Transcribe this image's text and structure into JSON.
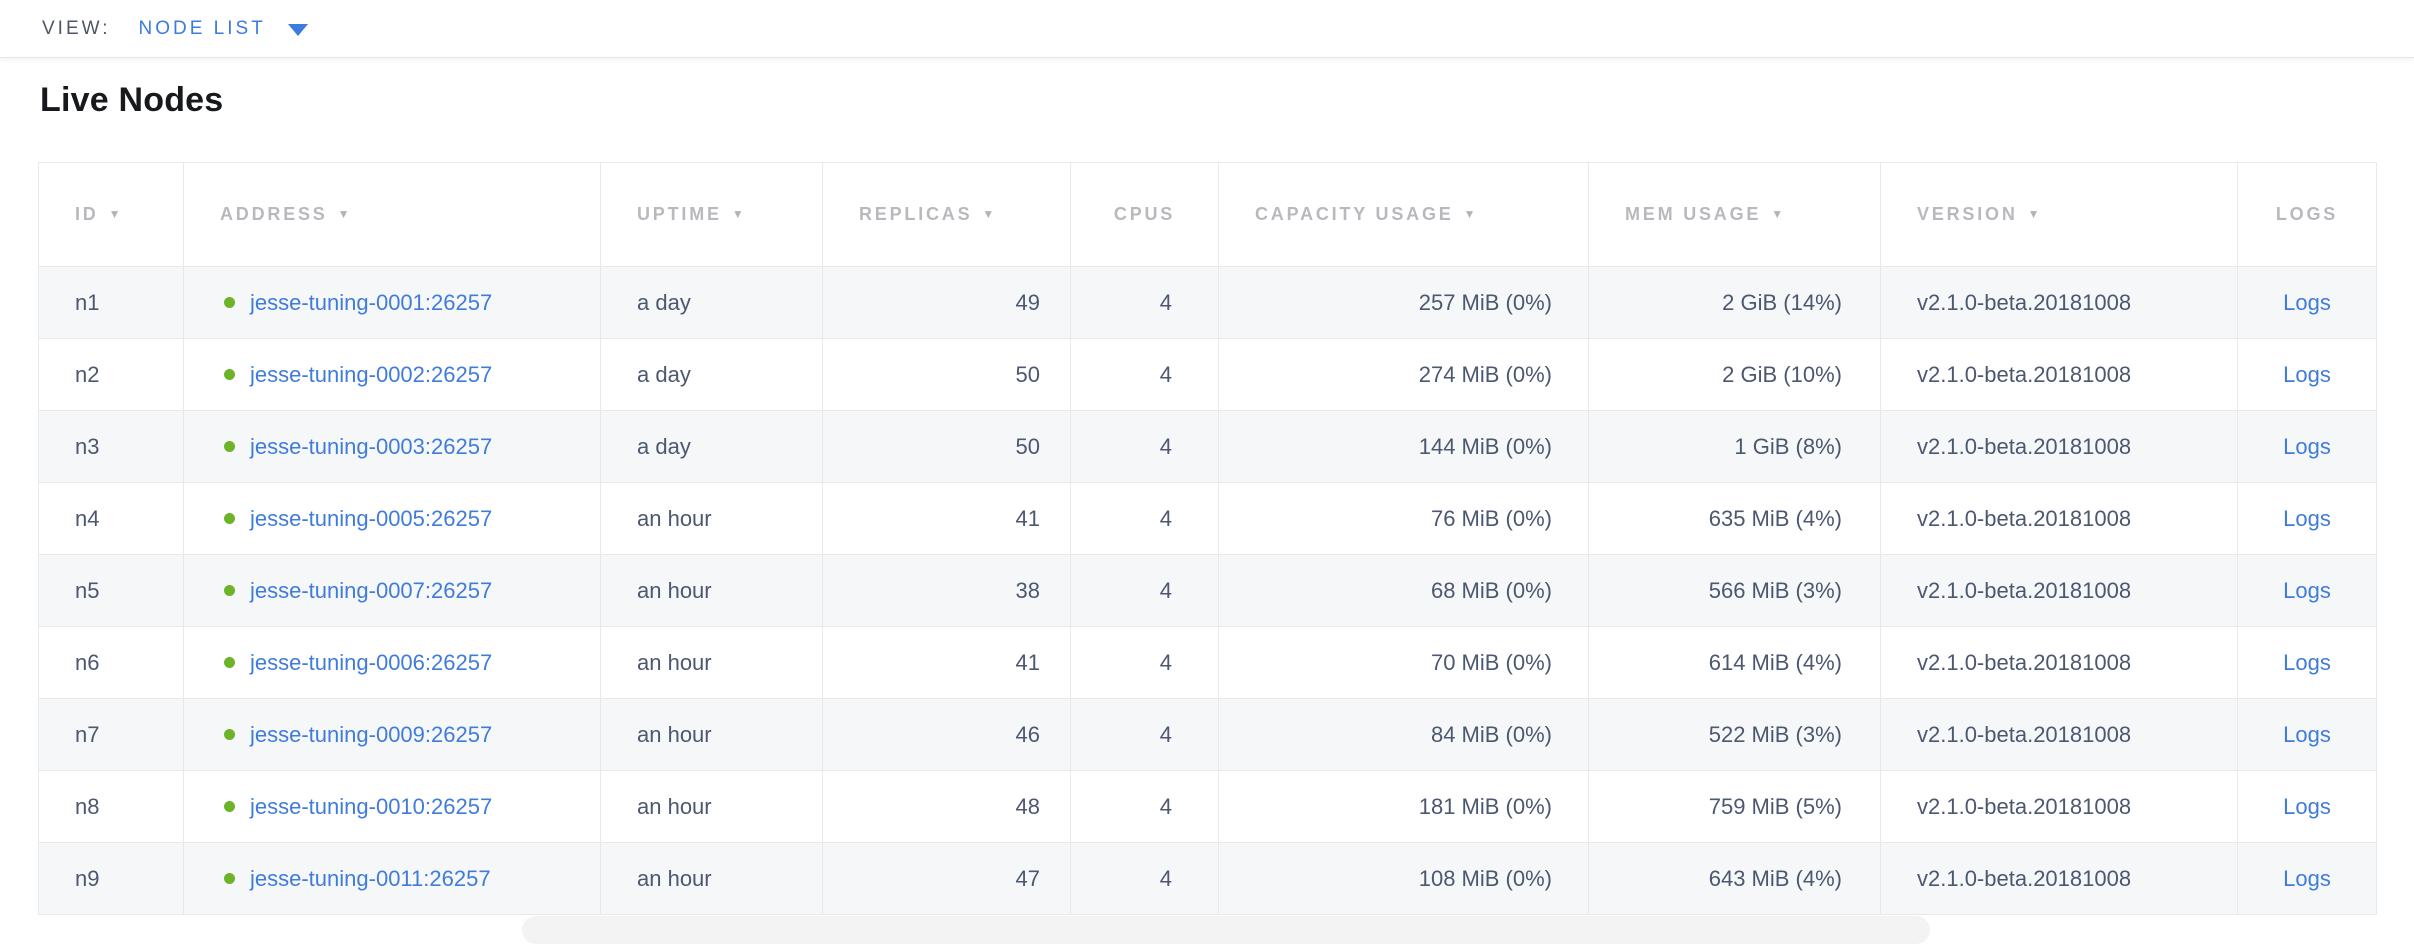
{
  "toolbar": {
    "view_label": "VIEW:",
    "view_value": "NODE LIST",
    "dropdown_icon": "chevron-down-filled-triangle"
  },
  "page": {
    "title": "Live Nodes"
  },
  "colors": {
    "accent_blue": "#3d7be0",
    "link_blue": "#3f7cdb",
    "live_status_green": "#6db327",
    "header_gray": "#b7b9bd",
    "text_slate": "#4c5870",
    "row_alt_bg": "#f6f7f8",
    "border": "#e8e9eb"
  },
  "table": {
    "columns": [
      {
        "key": "id",
        "label": "ID",
        "sortable": true
      },
      {
        "key": "address",
        "label": "ADDRESS",
        "sortable": true
      },
      {
        "key": "uptime",
        "label": "UPTIME",
        "sortable": true
      },
      {
        "key": "replicas",
        "label": "REPLICAS",
        "sortable": true
      },
      {
        "key": "cpus",
        "label": "CPUS",
        "sortable": false
      },
      {
        "key": "capacity",
        "label": "CAPACITY USAGE",
        "sortable": true
      },
      {
        "key": "mem",
        "label": "MEM USAGE",
        "sortable": true
      },
      {
        "key": "version",
        "label": "VERSION",
        "sortable": true
      },
      {
        "key": "logs",
        "label": "LOGS",
        "sortable": false
      }
    ],
    "sort_icon": "▼",
    "rows": [
      {
        "id": "n1",
        "address": "jesse-tuning-0001:26257",
        "status": "live",
        "uptime": "a day",
        "replicas": "49",
        "cpus": "4",
        "capacity": "257 MiB (0%)",
        "mem": "2 GiB (14%)",
        "version": "v2.1.0-beta.20181008",
        "logs": "Logs"
      },
      {
        "id": "n2",
        "address": "jesse-tuning-0002:26257",
        "status": "live",
        "uptime": "a day",
        "replicas": "50",
        "cpus": "4",
        "capacity": "274 MiB (0%)",
        "mem": "2 GiB (10%)",
        "version": "v2.1.0-beta.20181008",
        "logs": "Logs"
      },
      {
        "id": "n3",
        "address": "jesse-tuning-0003:26257",
        "status": "live",
        "uptime": "a day",
        "replicas": "50",
        "cpus": "4",
        "capacity": "144 MiB (0%)",
        "mem": "1 GiB (8%)",
        "version": "v2.1.0-beta.20181008",
        "logs": "Logs"
      },
      {
        "id": "n4",
        "address": "jesse-tuning-0005:26257",
        "status": "live",
        "uptime": "an hour",
        "replicas": "41",
        "cpus": "4",
        "capacity": "76 MiB (0%)",
        "mem": "635 MiB (4%)",
        "version": "v2.1.0-beta.20181008",
        "logs": "Logs"
      },
      {
        "id": "n5",
        "address": "jesse-tuning-0007:26257",
        "status": "live",
        "uptime": "an hour",
        "replicas": "38",
        "cpus": "4",
        "capacity": "68 MiB (0%)",
        "mem": "566 MiB (3%)",
        "version": "v2.1.0-beta.20181008",
        "logs": "Logs"
      },
      {
        "id": "n6",
        "address": "jesse-tuning-0006:26257",
        "status": "live",
        "uptime": "an hour",
        "replicas": "41",
        "cpus": "4",
        "capacity": "70 MiB (0%)",
        "mem": "614 MiB (4%)",
        "version": "v2.1.0-beta.20181008",
        "logs": "Logs"
      },
      {
        "id": "n7",
        "address": "jesse-tuning-0009:26257",
        "status": "live",
        "uptime": "an hour",
        "replicas": "46",
        "cpus": "4",
        "capacity": "84 MiB (0%)",
        "mem": "522 MiB (3%)",
        "version": "v2.1.0-beta.20181008",
        "logs": "Logs"
      },
      {
        "id": "n8",
        "address": "jesse-tuning-0010:26257",
        "status": "live",
        "uptime": "an hour",
        "replicas": "48",
        "cpus": "4",
        "capacity": "181 MiB (0%)",
        "mem": "759 MiB (5%)",
        "version": "v2.1.0-beta.20181008",
        "logs": "Logs"
      },
      {
        "id": "n9",
        "address": "jesse-tuning-0011:26257",
        "status": "live",
        "uptime": "an hour",
        "replicas": "47",
        "cpus": "4",
        "capacity": "108 MiB (0%)",
        "mem": "643 MiB (4%)",
        "version": "v2.1.0-beta.20181008",
        "logs": "Logs"
      }
    ]
  }
}
